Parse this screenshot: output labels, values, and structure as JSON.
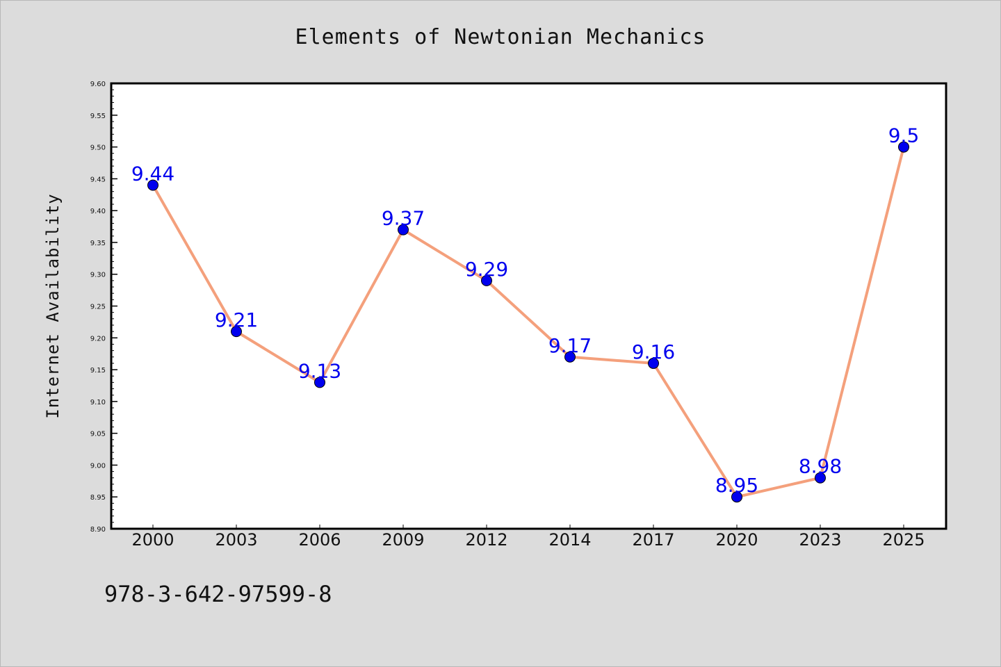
{
  "chart_data": {
    "type": "line",
    "title": "Elements of Newtonian Mechanics",
    "xlabel": "",
    "ylabel": "Internet Availability",
    "categories": [
      "2000",
      "2003",
      "2006",
      "2009",
      "2012",
      "2014",
      "2017",
      "2020",
      "2023",
      "2025"
    ],
    "values": [
      9.44,
      9.21,
      9.13,
      9.37,
      9.29,
      9.17,
      9.16,
      8.95,
      8.98,
      9.5
    ],
    "data_labels": [
      "9.44",
      "9.21",
      "9.13",
      "9.37",
      "9.29",
      "9.17",
      "9.16",
      "8.95",
      "8.98",
      "9.5"
    ],
    "ylim": [
      8.9,
      9.6
    ],
    "yticks": [
      "8.90",
      "8.95",
      "9.00",
      "9.05",
      "9.10",
      "9.15",
      "9.20",
      "9.25",
      "9.30",
      "9.35",
      "9.40",
      "9.45",
      "9.50",
      "9.55",
      "9.60"
    ],
    "grid": false,
    "legend": "none",
    "line_color": "#f4a07c",
    "marker_color": "#0000ee",
    "label_color": "#0000ee"
  },
  "footer_text": "978-3-642-97599-8"
}
